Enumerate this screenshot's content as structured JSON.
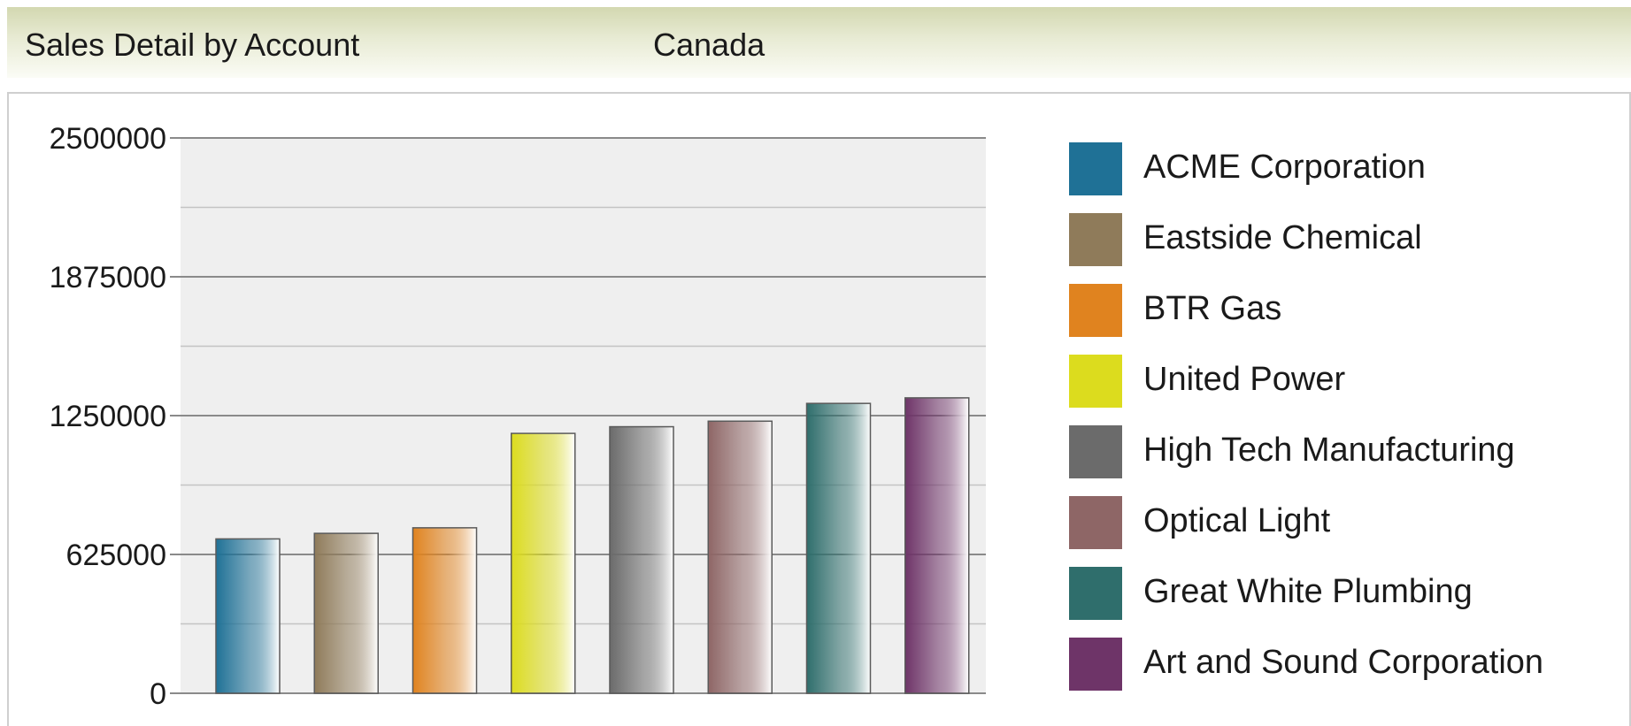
{
  "header": {
    "title": "Sales Detail by Account",
    "region": "Canada"
  },
  "chart_data": {
    "type": "bar",
    "title": "",
    "xlabel": "",
    "ylabel": "",
    "ylim": [
      0,
      2500000
    ],
    "yticks": [
      "2500000",
      "1875000",
      "1250000",
      "625000",
      "0"
    ],
    "ytick_values": [
      2500000,
      1875000,
      1250000,
      625000,
      0
    ],
    "grid": true,
    "legend_position": "right",
    "categories": [
      "ACME Corporation",
      "Eastside Chemical",
      "BTR Gas",
      "United Power",
      "High Tech Manufacturing",
      "Optical Light",
      "Great White Plumbing",
      "Art and Sound Corporation"
    ],
    "values": [
      695000,
      720000,
      745000,
      1170000,
      1200000,
      1225000,
      1305000,
      1330000
    ],
    "colors": [
      "#1f7196",
      "#8f7b5a",
      "#e0831f",
      "#dcdc1e",
      "#6b6b6b",
      "#8e6666",
      "#2f6e6c",
      "#6e3468"
    ]
  }
}
